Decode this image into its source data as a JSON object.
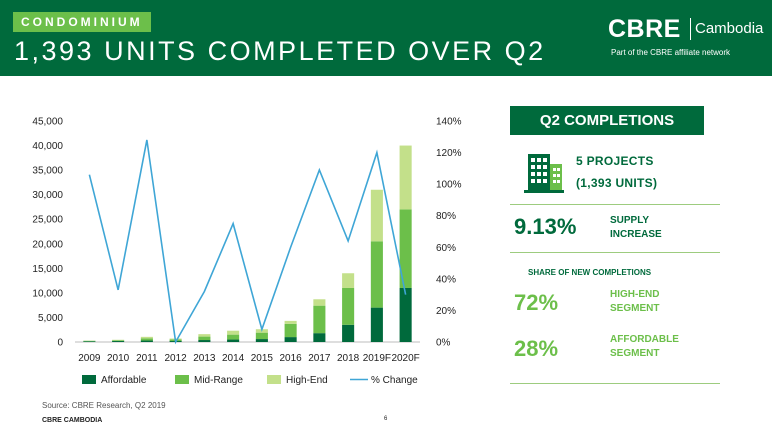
{
  "header": {
    "tag": "CONDOMINIUM",
    "title": "1,393 UNITS COMPLETED OVER Q2",
    "logo_main": "CBRE",
    "logo_city": "Cambodia",
    "logo_sub": "Part of the CBRE affiliate network"
  },
  "colors": {
    "dark_green": "#006a3c",
    "mid_green": "#6cbf4a",
    "light_green": "#c3e08a",
    "line_blue": "#3fa6d6"
  },
  "chart_data": {
    "type": "bar",
    "stacked": true,
    "categories": [
      "2009",
      "2010",
      "2011",
      "2012",
      "2013",
      "2014",
      "2015",
      "2016",
      "2017",
      "2018",
      "2019F",
      "2020F"
    ],
    "series": [
      {
        "name": "Affordable",
        "type": "bar",
        "axis": "left",
        "color": "#006a3c",
        "values": [
          150,
          200,
          300,
          200,
          400,
          500,
          600,
          1000,
          1800,
          3500,
          7000,
          11000
        ]
      },
      {
        "name": "Mid-Range",
        "type": "bar",
        "axis": "left",
        "color": "#6cbf4a",
        "values": [
          100,
          150,
          450,
          300,
          700,
          1000,
          1300,
          2700,
          5600,
          7500,
          13500,
          16000
        ]
      },
      {
        "name": "High-End",
        "type": "bar",
        "axis": "left",
        "color": "#c3e08a",
        "values": [
          50,
          100,
          300,
          200,
          500,
          800,
          700,
          600,
          1300,
          3000,
          10500,
          13000
        ]
      },
      {
        "name": "% Change",
        "type": "line",
        "axis": "right",
        "color": "#3fa6d6",
        "values": [
          106,
          33,
          128,
          0,
          32,
          75,
          8,
          60,
          109,
          64,
          120,
          30
        ]
      }
    ],
    "left_axis": {
      "min": 0,
      "max": 45000,
      "step": 5000,
      "tick_labels": [
        "0",
        "5,000",
        "10,000",
        "15,000",
        "20,000",
        "25,000",
        "30,000",
        "35,000",
        "40,000",
        "45,000"
      ]
    },
    "right_axis": {
      "min": 0,
      "max": 140,
      "step": 20,
      "tick_labels": [
        "0%",
        "20%",
        "40%",
        "60%",
        "80%",
        "100%",
        "120%",
        "140%"
      ]
    },
    "grid": false,
    "legend": "bottom"
  },
  "summary": {
    "title": "Q2 COMPLETIONS",
    "projects_line1": "5 PROJECTS",
    "projects_line2": "(1,393 UNITS)",
    "supply_pct": "9.13%",
    "supply_label1": "SUPPLY",
    "supply_label2": "INCREASE",
    "share_title": "SHARE OF NEW COMPLETIONS",
    "high_end_pct": "72%",
    "high_end_label1": "HIGH-END",
    "high_end_label2": "SEGMENT",
    "affordable_pct": "28%",
    "affordable_label1": "AFFORDABLE",
    "affordable_label2": "SEGMENT",
    "icon": "building-icon"
  },
  "footer": {
    "source": "Source: CBRE Research, Q2 2019",
    "brand": "CBRE CAMBODIA",
    "page": "6"
  }
}
